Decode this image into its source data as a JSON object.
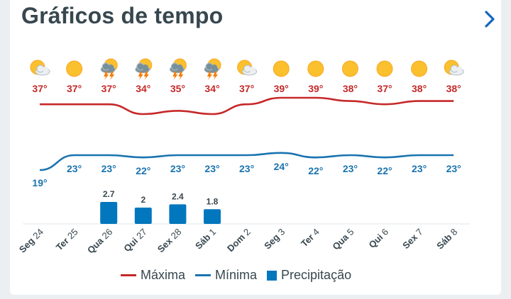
{
  "header": {
    "title": "Gráficos de tempo",
    "next_icon": "chevron-right-icon"
  },
  "colors": {
    "max": "#c62828",
    "min": "#1a73b0",
    "precip": "#0277bd",
    "sun": "#fbc02d",
    "title": "#37474f"
  },
  "chart_data": {
    "type": "line",
    "categories": [
      "Seg 24",
      "Ter 25",
      "Qua 26",
      "Qui 27",
      "Sex 28",
      "Sáb 1",
      "Dom 2",
      "Seg 3",
      "Ter 4",
      "Qua 5",
      "Qui 6",
      "Sex 7",
      "Sáb 8"
    ],
    "day_names": [
      "Seg",
      "Ter",
      "Qua",
      "Qui",
      "Sex",
      "Sáb",
      "Dom",
      "Seg",
      "Ter",
      "Qua",
      "Qui",
      "Sex",
      "Sáb"
    ],
    "day_numbers": [
      "24",
      "25",
      "26",
      "27",
      "28",
      "1",
      "2",
      "3",
      "4",
      "5",
      "6",
      "7",
      "8"
    ],
    "icons": [
      "partly-cloudy-icon",
      "sun-icon",
      "thunderstorm-icon",
      "thunderstorm-icon",
      "thunderstorm-icon",
      "thunderstorm-icon",
      "partly-cloudy-icon",
      "sun-icon",
      "sun-icon",
      "sun-icon",
      "sun-icon",
      "sun-icon",
      "partly-cloudy-icon"
    ],
    "series": [
      {
        "name": "Máxima",
        "values": [
          37,
          37,
          37,
          34,
          35,
          34,
          37,
          39,
          39,
          38,
          37,
          38,
          38
        ],
        "labels": [
          "37°",
          "37°",
          "37°",
          "34°",
          "35°",
          "34°",
          "37°",
          "39°",
          "39°",
          "38°",
          "37°",
          "38°",
          "38°"
        ]
      },
      {
        "name": "Mínima",
        "values": [
          19,
          23,
          23,
          22,
          23,
          23,
          23,
          24,
          22,
          23,
          22,
          23,
          23
        ],
        "labels": [
          "19°",
          "23°",
          "23°",
          "22°",
          "23°",
          "23°",
          "23°",
          "24°",
          "22°",
          "23°",
          "22°",
          "23°",
          "23°"
        ]
      },
      {
        "name": "Precipitação",
        "values": [
          0,
          0,
          2.7,
          2,
          2.4,
          1.8,
          0,
          0,
          0,
          0,
          0,
          0,
          0
        ],
        "labels": [
          "",
          "",
          "2.7",
          "2",
          "2.4",
          "1.8",
          "",
          "",
          "",
          "",
          "",
          "",
          ""
        ]
      }
    ],
    "legend": [
      "Máxima",
      "Mínima",
      "Precipitação"
    ],
    "legend_position": "bottom"
  }
}
